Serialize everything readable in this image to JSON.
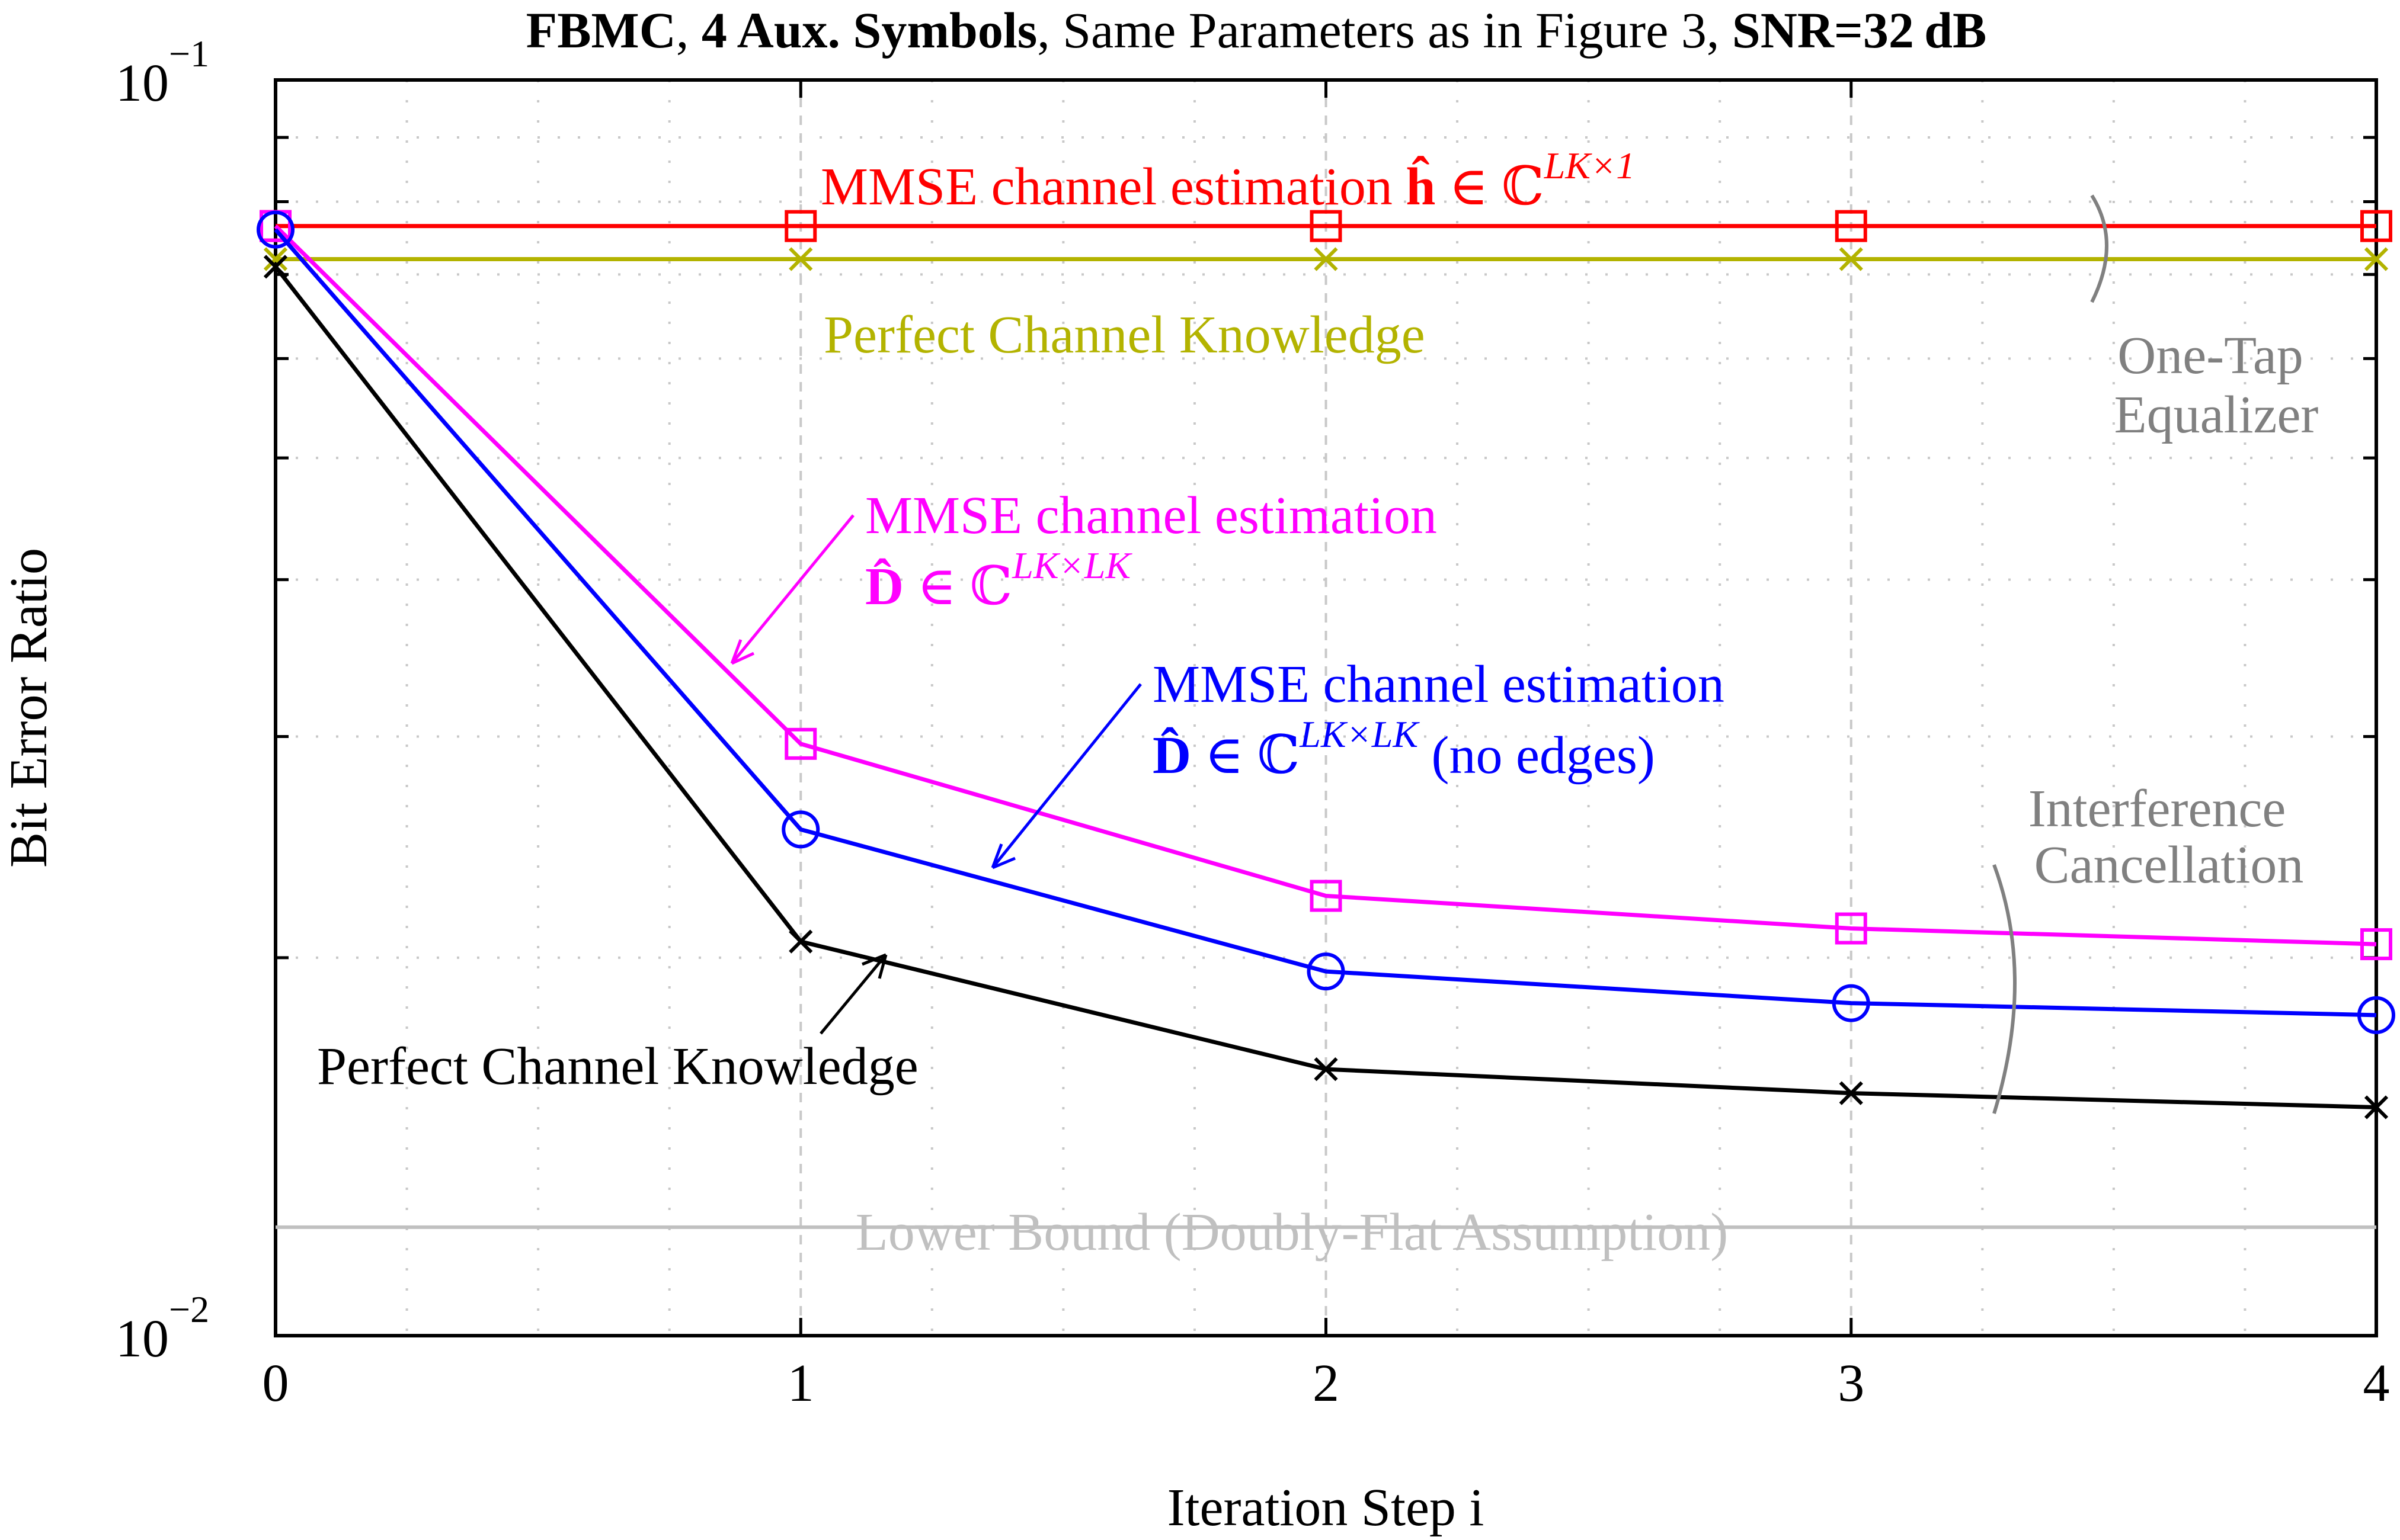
{
  "chart_data": {
    "type": "line",
    "title_parts": [
      {
        "text": "FBMC",
        "bold": true
      },
      {
        "text": ", ",
        "bold": false
      },
      {
        "text": "4 Aux. Symbols",
        "bold": true
      },
      {
        "text": ", Same Parameters as in Figure 3, ",
        "bold": false
      },
      {
        "text": "SNR=32 dB",
        "bold": true
      }
    ],
    "xlabel": "Iteration Step i",
    "ylabel": "Bit Error Ratio",
    "xlim": [
      0,
      4
    ],
    "ylim": [
      0.01,
      0.1
    ],
    "yscale": "log",
    "grid": true,
    "x": [
      0,
      1,
      2,
      3,
      4
    ],
    "xticks": [
      "0",
      "1",
      "2",
      "3",
      "4"
    ],
    "yticks": [
      {
        "base": "10",
        "exp": "−1",
        "value": 0.1
      },
      {
        "base": "10",
        "exp": "−2",
        "value": 0.01
      }
    ],
    "series": [
      {
        "id": "onetap-mmse",
        "values": [
          0.0765,
          0.0765,
          0.0765,
          0.0765,
          0.0765
        ],
        "color": "#ff0000",
        "marker": "square"
      },
      {
        "id": "onetap-perfect",
        "values": [
          0.072,
          0.072,
          0.072,
          0.072,
          0.072
        ],
        "color": "#b3b300",
        "marker": "x"
      },
      {
        "id": "ic-mmse",
        "values": [
          0.0765,
          0.0296,
          0.0224,
          0.0211,
          0.0205
        ],
        "color": "#ff00ff",
        "marker": "square"
      },
      {
        "id": "ic-mmse-noedges",
        "values": [
          0.076,
          0.0253,
          0.0195,
          0.0184,
          0.018
        ],
        "color": "#0000ff",
        "marker": "circle"
      },
      {
        "id": "ic-perfect",
        "values": [
          0.071,
          0.0206,
          0.0163,
          0.0156,
          0.0152
        ],
        "color": "#000000",
        "marker": "x"
      },
      {
        "id": "lower-bound",
        "values": [
          0.0122,
          0.0122,
          0.0122,
          0.0122,
          0.0122
        ],
        "color": "#c0c0c0",
        "marker": "none"
      }
    ],
    "annotations": {
      "onetap_mmse_label": {
        "text": "MMSE channel estimation ",
        "math_base": "ĥ",
        "math_rest": " ∈ ℂ",
        "sup": "LK×1"
      },
      "onetap_perfect_label": "Perfect Channel Knowledge",
      "onetap_group": [
        "One-Tap",
        "Equalizer"
      ],
      "ic_mmse_label": {
        "line1": "MMSE channel estimation",
        "math_base": "D̂",
        "math_rest": " ∈ ℂ",
        "sup": "LK×LK"
      },
      "ic_noedges_label": {
        "line1": "MMSE channel estimation",
        "math_base": "D̂",
        "math_rest": " ∈ ℂ",
        "sup": "LK×LK",
        "suffix": " (no edges)"
      },
      "ic_perfect_label": "Perfect Channel Knowledge",
      "ic_group": [
        "Interference",
        "Cancellation"
      ],
      "lower_bound_label": "Lower Bound (Doubly-Flat Assumption)"
    },
    "colors": {
      "group_label": "#808080",
      "grid": "#c8c8c8"
    }
  }
}
